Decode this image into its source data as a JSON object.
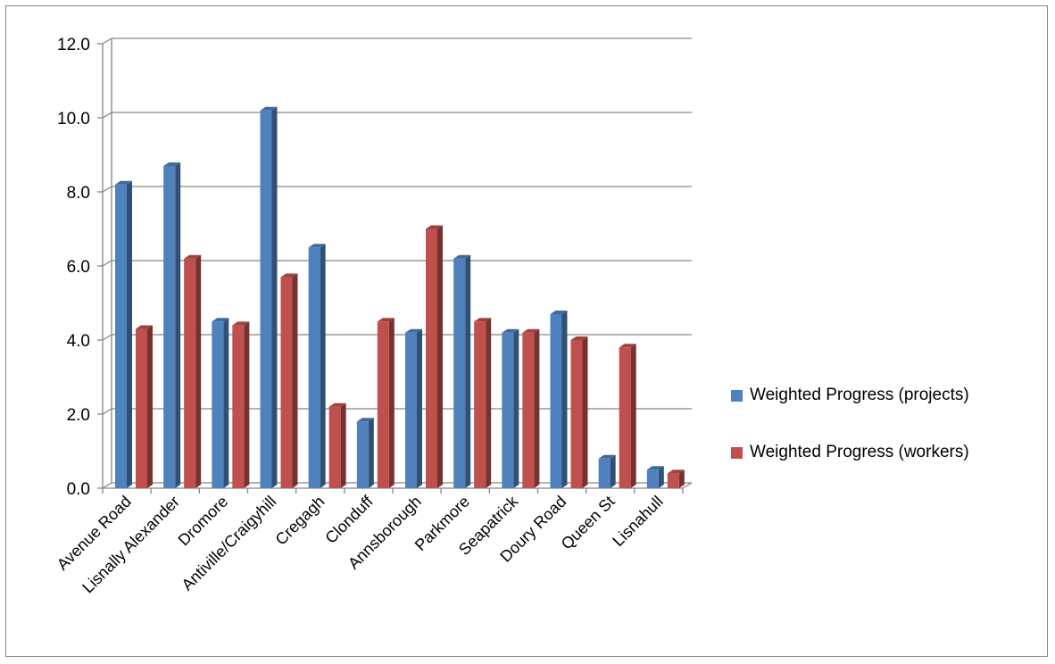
{
  "chart_data": {
    "type": "bar",
    "title": "",
    "xlabel": "",
    "ylabel": "",
    "ylim": [
      0,
      12
    ],
    "yticks": [
      "0.0",
      "2.0",
      "4.0",
      "6.0",
      "8.0",
      "10.0",
      "12.0"
    ],
    "grid": true,
    "legend_position": "right",
    "categories": [
      "Avenue Road",
      "Lisnally Alexander",
      "Dromore",
      "Antiville/Craigyhill",
      "Cregagh",
      "Clonduff",
      "Annsborough",
      "Parkmore",
      "Seapatrick",
      "Doury Road",
      "Queen St",
      "Lisnahull"
    ],
    "series": [
      {
        "name": "Weighted Progress (projects)",
        "color": "#4F81BD",
        "values": [
          8.2,
          8.7,
          4.5,
          10.2,
          6.5,
          1.8,
          4.2,
          6.2,
          4.2,
          4.7,
          0.8,
          0.5
        ]
      },
      {
        "name": "Weighted Progress (workers)",
        "color": "#C0504D",
        "values": [
          4.3,
          6.2,
          4.4,
          5.7,
          2.2,
          4.5,
          7.0,
          4.5,
          4.2,
          4.0,
          3.8,
          0.4
        ]
      }
    ]
  }
}
